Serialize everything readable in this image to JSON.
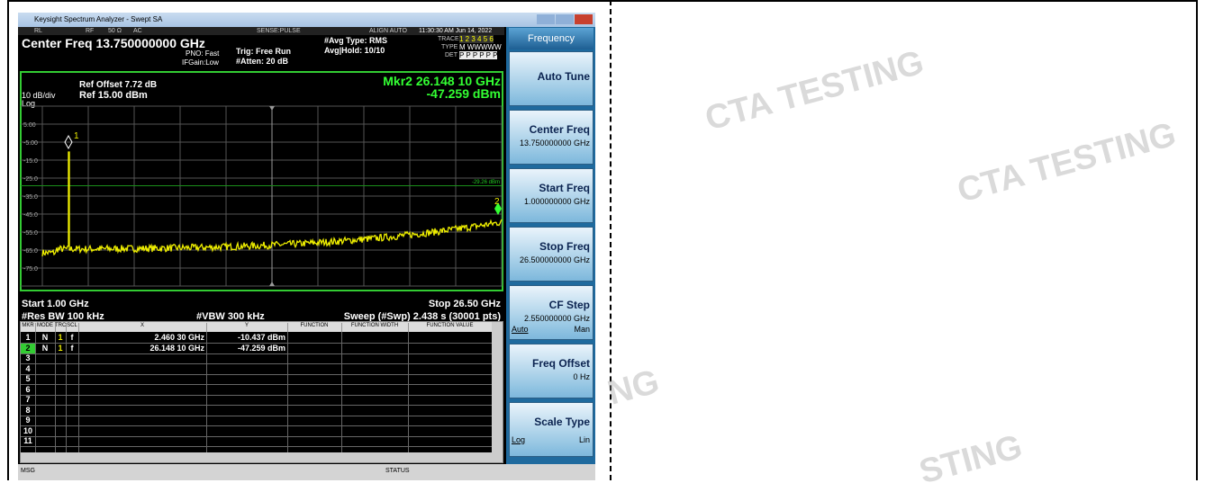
{
  "window": {
    "title": "Keysight Spectrum Analyzer - Swept SA"
  },
  "status": {
    "rl": "RL",
    "rf": "RF",
    "impedance": "50 Ω",
    "coupling": "AC",
    "sense": "SENSE:PULSE",
    "align": "ALIGN AUTO",
    "datetime": "11:30:30 AM Jun 14, 2022",
    "center_freq": "Center Freq 13.750000000 GHz",
    "pno": "PNO: Fast",
    "ifgain": "IFGain:Low",
    "trig": "Trig: Free Run",
    "atten": "#Atten: 20 dB",
    "avg_type": "#Avg Type: RMS",
    "avg_hold": "Avg|Hold: 10/10",
    "trace_label": "TRACE",
    "trace": "1 2 3 4 5 6",
    "type_label": "TYPE",
    "type": "M WWWWW",
    "det_label": "DET",
    "det": "P P P P P P"
  },
  "graph": {
    "ref_offset": "Ref Offset 7.72 dB",
    "scale": "10 dB/div",
    "ref": "Ref 15.00 dBm",
    "log": "Log",
    "marker_readout": "Mkr2 26.148 10 GHz",
    "marker_level": "-47.259 dBm",
    "y_labels": [
      "5.00",
      "-5.00",
      "-15.0",
      "-25.0",
      "-35.0",
      "-45.0",
      "-55.0",
      "-65.0",
      "-75.0"
    ],
    "display_line": "-29.26 dBm",
    "marker_labels": [
      "1",
      "2"
    ],
    "start": "Start 1.00 GHz",
    "stop": "Stop 26.50 GHz",
    "rbw": "#Res BW 100 kHz",
    "vbw": "#VBW 300 kHz",
    "sweep": "Sweep (#Swp) 2.438 s (30001 pts)"
  },
  "marker_table": {
    "headers": [
      "MKR",
      "MODE",
      "TRC",
      "SCL",
      "X",
      "Y",
      "FUNCTION",
      "FUNCTION WIDTH",
      "FUNCTION VALUE"
    ],
    "rows": [
      [
        "1",
        "N",
        "1",
        "f",
        "2.460 30 GHz",
        "-10.437 dBm"
      ],
      [
        "2",
        "N",
        "1",
        "f",
        "26.148 10 GHz",
        "-47.259 dBm"
      ],
      [
        "3"
      ],
      [
        "4"
      ],
      [
        "5"
      ],
      [
        "6"
      ],
      [
        "7"
      ],
      [
        "8"
      ],
      [
        "9"
      ],
      [
        "10"
      ],
      [
        "11"
      ]
    ]
  },
  "softkeys": {
    "menu": "Frequency",
    "keys": [
      {
        "title": "Auto Tune"
      },
      {
        "title": "Center Freq",
        "value": "13.750000000 GHz"
      },
      {
        "title": "Start Freq",
        "value": "1.000000000 GHz"
      },
      {
        "title": "Stop Freq",
        "value": "26.500000000 GHz"
      },
      {
        "title": "CF Step",
        "value": "2.550000000 GHz",
        "left": "Auto",
        "right": "Man"
      },
      {
        "title": "Freq Offset",
        "value": "0 Hz"
      },
      {
        "title": "Scale Type",
        "left": "Log",
        "right": "Lin"
      }
    ]
  },
  "bottom": {
    "msg": "MSG",
    "status": "STATUS"
  },
  "watermarks": [
    "CTA TESTING",
    "CTA TESTING",
    "NG",
    "STING"
  ]
}
